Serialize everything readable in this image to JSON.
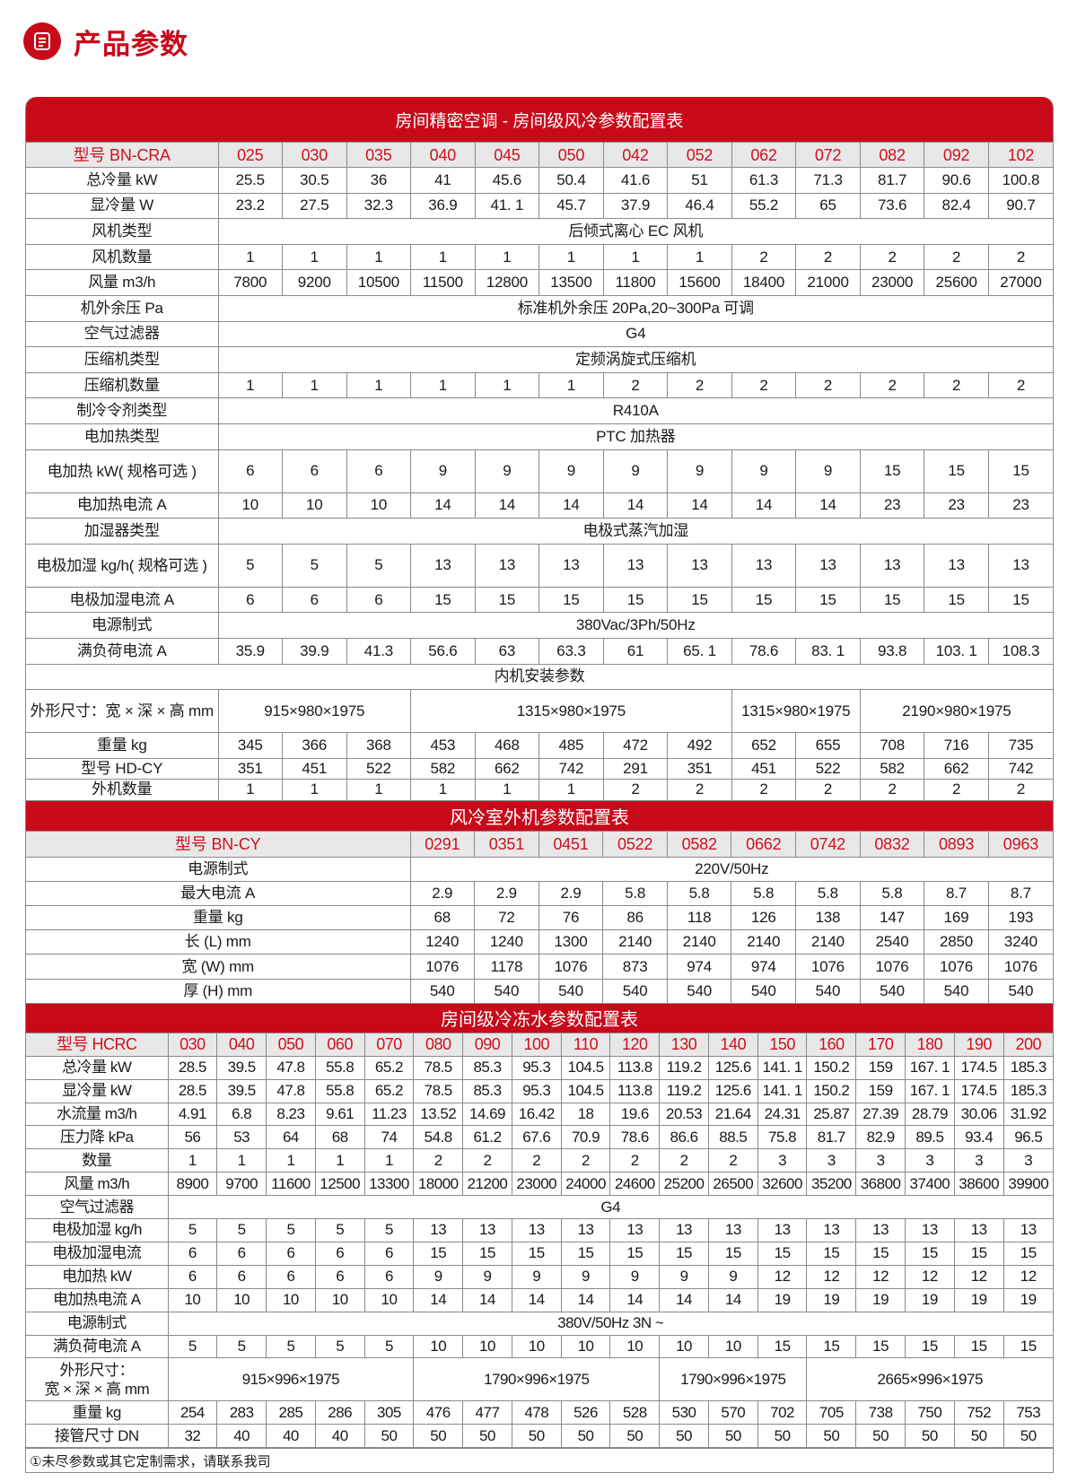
{
  "page_title": "产品参数",
  "icon": "document-icon",
  "colors": {
    "accent": "#c8091a",
    "header_bg": "#e8e8e8",
    "model_text": "#d0101d"
  },
  "tables": [
    {
      "title": "房间精密空调 - 房间级风冷参数配置表",
      "header": {
        "label": "型号 BN-CRA",
        "models": [
          "025",
          "030",
          "035",
          "040",
          "045",
          "050",
          "042",
          "052",
          "062",
          "072",
          "082",
          "092",
          "102"
        ]
      },
      "rows": [
        {
          "label": "总冷量 kW",
          "cells": [
            "25.5",
            "30.5",
            "36",
            "41",
            "45.6",
            "50.4",
            "41.6",
            "51",
            "61.3",
            "71.3",
            "81.7",
            "90.6",
            "100.8"
          ]
        },
        {
          "label": "显冷量 W",
          "cells": [
            "23.2",
            "27.5",
            "32.3",
            "36.9",
            "41. 1",
            "45.7",
            "37.9",
            "46.4",
            "55.2",
            "65",
            "73.6",
            "82.4",
            "90.7"
          ]
        },
        {
          "label": "风机类型",
          "cells": [
            {
              "value": "后倾式离心 EC 风机",
              "span": 13
            }
          ]
        },
        {
          "label": "风机数量",
          "cells": [
            "1",
            "1",
            "1",
            "1",
            "1",
            "1",
            "1",
            "1",
            "2",
            "2",
            "2",
            "2",
            "2"
          ]
        },
        {
          "label": "风量 m3/h",
          "cells": [
            "7800",
            "9200",
            "10500",
            "11500",
            "12800",
            "13500",
            "11800",
            "15600",
            "18400",
            "21000",
            "23000",
            "25600",
            "27000"
          ]
        },
        {
          "label": "机外余压 Pa",
          "cells": [
            {
              "value": "标准机外余压 20Pa,20~300Pa 可调",
              "span": 13
            }
          ]
        },
        {
          "label": "空气过滤器",
          "cells": [
            {
              "value": "G4",
              "span": 13
            }
          ]
        },
        {
          "label": "压缩机类型",
          "cells": [
            {
              "value": "定频涡旋式压缩机",
              "span": 13
            }
          ]
        },
        {
          "label": "压缩机数量",
          "cells": [
            "1",
            "1",
            "1",
            "1",
            "1",
            "1",
            "2",
            "2",
            "2",
            "2",
            "2",
            "2",
            "2"
          ]
        },
        {
          "label": "制冷令剂类型",
          "cells": [
            {
              "value": "R410A",
              "span": 13
            }
          ]
        },
        {
          "label": "电加热类型",
          "cells": [
            {
              "value": "PTC 加热器",
              "span": 13
            }
          ]
        },
        {
          "label": "电加热 kW( 规格可选 )",
          "cells": [
            "6",
            "6",
            "6",
            "9",
            "9",
            "9",
            "9",
            "9",
            "9",
            "9",
            "15",
            "15",
            "15"
          ]
        },
        {
          "label": "电加热电流 A",
          "cells": [
            "10",
            "10",
            "10",
            "14",
            "14",
            "14",
            "14",
            "14",
            "14",
            "14",
            "23",
            "23",
            "23"
          ]
        },
        {
          "label": "加湿器类型",
          "cells": [
            {
              "value": "电极式蒸汽加湿",
              "span": 13
            }
          ]
        },
        {
          "label": "电极加湿 kg/h( 规格可选 )",
          "cells": [
            "5",
            "5",
            "5",
            "13",
            "13",
            "13",
            "13",
            "13",
            "13",
            "13",
            "13",
            "13",
            "13"
          ]
        },
        {
          "label": "电极加湿电流 A",
          "cells": [
            "6",
            "6",
            "6",
            "15",
            "15",
            "15",
            "15",
            "15",
            "15",
            "15",
            "15",
            "15",
            "15"
          ]
        },
        {
          "label": "电源制式",
          "cells": [
            {
              "value": "380Vac/3Ph/50Hz",
              "span": 13
            }
          ]
        },
        {
          "label": "满负荷电流 A",
          "cells": [
            "35.9",
            "39.9",
            "41.3",
            "56.6",
            "63",
            "63.3",
            "61",
            "65. 1",
            "78.6",
            "83. 1",
            "93.8",
            "103. 1",
            "108.3"
          ]
        },
        {
          "section": "内机安装参数"
        },
        {
          "label": "外形尺寸：宽 × 深 × 高 mm",
          "cells": [
            {
              "value": "915×980×1975",
              "span": 3
            },
            {
              "value": "1315×980×1975",
              "span": 5
            },
            {
              "value": "1315×980×1975",
              "span": 2
            },
            {
              "value": "2190×980×1975",
              "span": 3
            }
          ]
        },
        {
          "label": "重量 kg",
          "cells": [
            "345",
            "366",
            "368",
            "453",
            "468",
            "485",
            "472",
            "492",
            "652",
            "655",
            "708",
            "716",
            "735"
          ]
        },
        {
          "label": "型号 HD-CY",
          "cells": [
            "351",
            "451",
            "522",
            "582",
            "662",
            "742",
            "291",
            "351",
            "451",
            "522",
            "582",
            "662",
            "742"
          ]
        },
        {
          "label": "外机数量",
          "cells": [
            "1",
            "1",
            "1",
            "1",
            "1",
            "1",
            "2",
            "2",
            "2",
            "2",
            "2",
            "2",
            "2"
          ]
        }
      ]
    },
    {
      "title": "风冷室外机参数配置表",
      "header": {
        "label": "型号 BN-CY",
        "models": [
          "0291",
          "0351",
          "0451",
          "0522",
          "0582",
          "0662",
          "0742",
          "0832",
          "0893",
          "0963"
        ]
      },
      "rows": [
        {
          "label": "电源制式",
          "cells": [
            {
              "value": "220V/50Hz",
              "span": 10
            }
          ]
        },
        {
          "label": "最大电流 A",
          "cells": [
            "2.9",
            "2.9",
            "2.9",
            "5.8",
            "5.8",
            "5.8",
            "5.8",
            "5.8",
            "8.7",
            "8.7"
          ]
        },
        {
          "label": "重量 kg",
          "cells": [
            "68",
            "72",
            "76",
            "86",
            "118",
            "126",
            "138",
            "147",
            "169",
            "193"
          ]
        },
        {
          "label": "长 (L) mm",
          "cells": [
            "1240",
            "1240",
            "1300",
            "2140",
            "2140",
            "2140",
            "2140",
            "2540",
            "2850",
            "3240"
          ]
        },
        {
          "label": "宽 (W) mm",
          "cells": [
            "1076",
            "1178",
            "1076",
            "873",
            "974",
            "974",
            "1076",
            "1076",
            "1076",
            "1076"
          ]
        },
        {
          "label": "厚 (H) mm",
          "cells": [
            "540",
            "540",
            "540",
            "540",
            "540",
            "540",
            "540",
            "540",
            "540",
            "540"
          ]
        }
      ]
    },
    {
      "title": "房间级冷冻水参数配置表",
      "header": {
        "label": "型号 HCRC",
        "models": [
          "030",
          "040",
          "050",
          "060",
          "070",
          "080",
          "090",
          "100",
          "110",
          "120",
          "130",
          "140",
          "150",
          "160",
          "170",
          "180",
          "190",
          "200"
        ]
      },
      "rows": [
        {
          "label": "总冷量 kW",
          "cells": [
            "28.5",
            "39.5",
            "47.8",
            "55.8",
            "65.2",
            "78.5",
            "85.3",
            "95.3",
            "104.5",
            "113.8",
            "119.2",
            "125.6",
            "141. 1",
            "150.2",
            "159",
            "167. 1",
            "174.5",
            "185.3"
          ]
        },
        {
          "label": "显冷量 kW",
          "cells": [
            "28.5",
            "39.5",
            "47.8",
            "55.8",
            "65.2",
            "78.5",
            "85.3",
            "95.3",
            "104.5",
            "113.8",
            "119.2",
            "125.6",
            "141. 1",
            "150.2",
            "159",
            "167. 1",
            "174.5",
            "185.3"
          ]
        },
        {
          "label": "水流量 m3/h",
          "cells": [
            "4.91",
            "6.8",
            "8.23",
            "9.61",
            "11.23",
            "13.52",
            "14.69",
            "16.42",
            "18",
            "19.6",
            "20.53",
            "21.64",
            "24.31",
            "25.87",
            "27.39",
            "28.79",
            "30.06",
            "31.92"
          ]
        },
        {
          "label": "压力降 kPa",
          "cells": [
            "56",
            "53",
            "64",
            "68",
            "74",
            "54.8",
            "61.2",
            "67.6",
            "70.9",
            "78.6",
            "86.6",
            "88.5",
            "75.8",
            "81.7",
            "82.9",
            "89.5",
            "93.4",
            "96.5"
          ]
        },
        {
          "label": "数量",
          "cells": [
            "1",
            "1",
            "1",
            "1",
            "1",
            "2",
            "2",
            "2",
            "2",
            "2",
            "2",
            "2",
            "3",
            "3",
            "3",
            "3",
            "3",
            "3"
          ]
        },
        {
          "label": "风量 m3/h",
          "cells": [
            "8900",
            "9700",
            "11600",
            "12500",
            "13300",
            "18000",
            "21200",
            "23000",
            "24000",
            "24600",
            "25200",
            "26500",
            "32600",
            "35200",
            "36800",
            "37400",
            "38600",
            "39900"
          ]
        },
        {
          "label": "空气过滤器",
          "cells": [
            {
              "value": "G4",
              "span": 18
            }
          ]
        },
        {
          "label": "电极加湿 kg/h",
          "cells": [
            "5",
            "5",
            "5",
            "5",
            "5",
            "13",
            "13",
            "13",
            "13",
            "13",
            "13",
            "13",
            "13",
            "13",
            "13",
            "13",
            "13",
            "13"
          ]
        },
        {
          "label": "电极加湿电流",
          "cells": [
            "6",
            "6",
            "6",
            "6",
            "6",
            "15",
            "15",
            "15",
            "15",
            "15",
            "15",
            "15",
            "15",
            "15",
            "15",
            "15",
            "15",
            "15"
          ]
        },
        {
          "label": "电加热 kW",
          "cells": [
            "6",
            "6",
            "6",
            "6",
            "6",
            "9",
            "9",
            "9",
            "9",
            "9",
            "9",
            "9",
            "12",
            "12",
            "12",
            "12",
            "12",
            "12"
          ]
        },
        {
          "label": "电加热电流 A",
          "cells": [
            "10",
            "10",
            "10",
            "10",
            "10",
            "14",
            "14",
            "14",
            "14",
            "14",
            "14",
            "14",
            "19",
            "19",
            "19",
            "19",
            "19",
            "19"
          ]
        },
        {
          "label": "电源制式",
          "cells": [
            {
              "value": "380V/50Hz 3N ~",
              "span": 18
            }
          ]
        },
        {
          "label": "满负荷电流 A",
          "cells": [
            "5",
            "5",
            "5",
            "5",
            "5",
            "10",
            "10",
            "10",
            "10",
            "10",
            "10",
            "10",
            "15",
            "15",
            "15",
            "15",
            "15",
            "15"
          ]
        },
        {
          "label": "外形尺寸：\n宽 × 深 × 高 mm",
          "cells": [
            {
              "value": "915×996×1975",
              "span": 5
            },
            {
              "value": "1790×996×1975",
              "span": 5
            },
            {
              "value": "1790×996×1975",
              "span": 3
            },
            {
              "value": "2665×996×1975",
              "span": 5
            }
          ]
        },
        {
          "label": "重量 kg",
          "cells": [
            "254",
            "283",
            "285",
            "286",
            "305",
            "476",
            "477",
            "478",
            "526",
            "528",
            "530",
            "570",
            "702",
            "705",
            "738",
            "750",
            "752",
            "753"
          ]
        },
        {
          "label": "接管尺寸 DN",
          "cells": [
            "32",
            "40",
            "40",
            "40",
            "50",
            "50",
            "50",
            "50",
            "50",
            "50",
            "50",
            "50",
            "50",
            "50",
            "50",
            "50",
            "50",
            "50"
          ]
        }
      ]
    }
  ],
  "footnote": "①未尽参数或其它定制需求，请联系我司"
}
